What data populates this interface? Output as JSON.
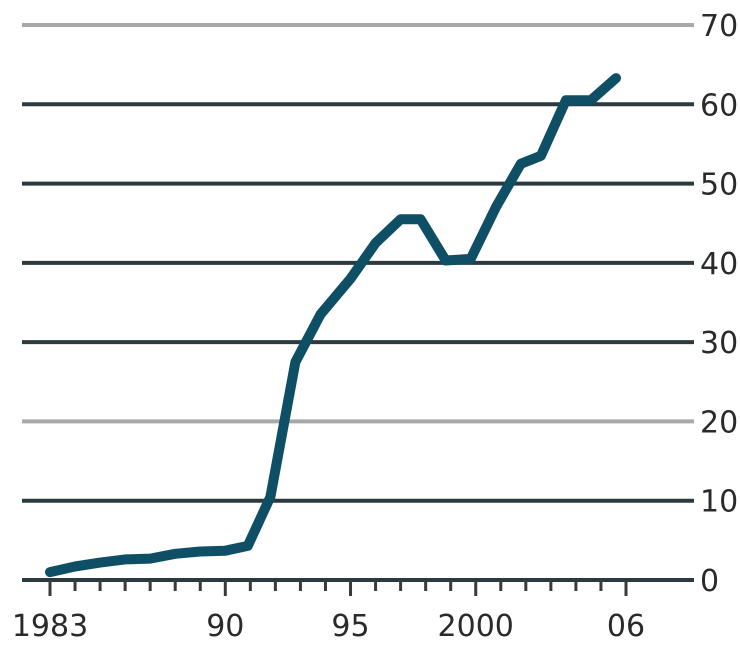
{
  "chart_data": {
    "type": "line",
    "title": "",
    "xlabel": "",
    "ylabel": "",
    "xlim": [
      1983,
      2006
    ],
    "ylim": [
      0,
      70
    ],
    "y_ticks": [
      0,
      10,
      20,
      30,
      40,
      50,
      60,
      70
    ],
    "y_tick_labels": [
      "0",
      "10",
      "20",
      "30",
      "40",
      "50",
      "60",
      "70"
    ],
    "x_tick_labels": [
      {
        "x": 1983,
        "label": "1983"
      },
      {
        "x": 1990,
        "label": "90"
      },
      {
        "x": 1995,
        "label": "95"
      },
      {
        "x": 2000,
        "label": "2000"
      },
      {
        "x": 2006,
        "label": "06"
      }
    ],
    "x_minor_ticks": [
      1983,
      1984,
      1985,
      1986,
      1987,
      1988,
      1989,
      1990,
      1991,
      1992,
      1993,
      1994,
      1995,
      1996,
      1997,
      1998,
      1999,
      2000,
      2001,
      2002,
      2003,
      2004,
      2005,
      2006
    ],
    "grid": true,
    "y_axis_side": "right",
    "series": [
      {
        "color": "#0f4f66",
        "points": [
          [
            1983,
            1
          ],
          [
            1984,
            1.7
          ],
          [
            1985,
            2.2
          ],
          [
            1986,
            2.6
          ],
          [
            1987,
            2.7
          ],
          [
            1988,
            3.3
          ],
          [
            1989,
            3.6
          ],
          [
            1990,
            3.7
          ],
          [
            1990.9,
            4.3
          ],
          [
            1991.8,
            10.5
          ],
          [
            1992.3,
            19
          ],
          [
            1992.8,
            27.5
          ],
          [
            1993.8,
            33.5
          ],
          [
            1995,
            38
          ],
          [
            1996,
            42.5
          ],
          [
            1997,
            45.5
          ],
          [
            1997.8,
            45.5
          ],
          [
            1998.8,
            40.3
          ],
          [
            1999.8,
            40.5
          ],
          [
            2000.8,
            47
          ],
          [
            2001.8,
            52.5
          ],
          [
            2002.6,
            53.5
          ],
          [
            2003.6,
            60.5
          ],
          [
            2004.6,
            60.5
          ],
          [
            2005.6,
            63.3
          ]
        ]
      }
    ]
  }
}
